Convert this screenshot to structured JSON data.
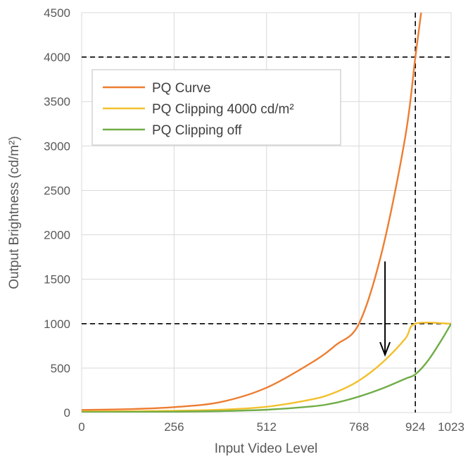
{
  "chart_data": {
    "type": "line",
    "title": "",
    "xlabel": "Input Video Level",
    "ylabel": "Output Brightness (cd/m²)",
    "xlim": [
      0,
      1023
    ],
    "ylim": [
      0,
      4500
    ],
    "x_ticks": [
      0,
      256,
      512,
      768,
      924,
      1023
    ],
    "y_ticks": [
      0,
      500,
      1000,
      1500,
      2000,
      2500,
      3000,
      3500,
      4000,
      4500
    ],
    "grid": true,
    "legend": "top-left",
    "series": [
      {
        "name": "PQ Curve",
        "color": "#ED7D31",
        "points": [
          [
            0,
            29
          ],
          [
            128,
            38
          ],
          [
            256,
            61
          ],
          [
            384,
            117
          ],
          [
            512,
            280
          ],
          [
            640,
            570
          ],
          [
            704,
            760
          ],
          [
            768,
            1000
          ],
          [
            832,
            1820
          ],
          [
            896,
            3100
          ],
          [
            924,
            4000
          ],
          [
            940,
            4500
          ]
        ]
      },
      {
        "name": "PQ Clipping 4000 cd/m²",
        "color": "#F2C12E",
        "points": [
          [
            0,
            12
          ],
          [
            128,
            14
          ],
          [
            256,
            20
          ],
          [
            384,
            32
          ],
          [
            512,
            65
          ],
          [
            640,
            150
          ],
          [
            704,
            230
          ],
          [
            768,
            360
          ],
          [
            832,
            560
          ],
          [
            896,
            830
          ],
          [
            924,
            1000
          ],
          [
            1023,
            1000
          ]
        ]
      },
      {
        "name": "PQ Clipping off",
        "color": "#70AD47",
        "points": [
          [
            0,
            5
          ],
          [
            128,
            6
          ],
          [
            256,
            9
          ],
          [
            384,
            16
          ],
          [
            512,
            32
          ],
          [
            640,
            70
          ],
          [
            704,
            110
          ],
          [
            768,
            180
          ],
          [
            832,
            270
          ],
          [
            896,
            380
          ],
          [
            924,
            430
          ],
          [
            960,
            590
          ],
          [
            1000,
            840
          ],
          [
            1023,
            1000
          ]
        ]
      }
    ],
    "reference_lines": {
      "horizontal": [
        4000,
        1000
      ],
      "vertical": [
        924
      ]
    },
    "annotation": {
      "type": "arrow",
      "x": 840,
      "y_from": 1700,
      "y_to": 650
    }
  }
}
